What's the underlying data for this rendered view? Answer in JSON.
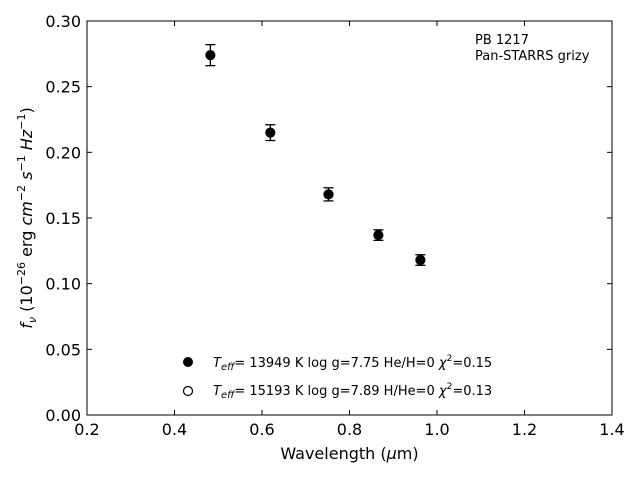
{
  "chart_data": {
    "type": "scatter",
    "title": "",
    "xlabel": "Wavelength (μm)",
    "ylabel": "f_ν (10^-26 erg cm^-2 s^-1 Hz^-1)",
    "xlim": [
      0.2,
      1.4
    ],
    "ylim": [
      0.0,
      0.3
    ],
    "xticks": [
      "0.2",
      "0.4",
      "0.6",
      "0.8",
      "1.0",
      "1.2",
      "1.4"
    ],
    "yticks": [
      "0.00",
      "0.05",
      "0.10",
      "0.15",
      "0.20",
      "0.25",
      "0.30"
    ],
    "grid": false,
    "annotation": {
      "line1": "PB 1217",
      "line2": "Pan-STARRS grizy"
    },
    "series": [
      {
        "name": "T_eff= 13949 K  log g=7.75  He/H=0  χ²=0.15",
        "marker": "filled-circle",
        "color": "#000000",
        "points": [
          {
            "x": 0.482,
            "y": 0.274,
            "err": 0.008
          },
          {
            "x": 0.619,
            "y": 0.215,
            "err": 0.006
          },
          {
            "x": 0.752,
            "y": 0.168,
            "err": 0.005
          },
          {
            "x": 0.866,
            "y": 0.137,
            "err": 0.004
          },
          {
            "x": 0.962,
            "y": 0.118,
            "err": 0.004
          }
        ]
      },
      {
        "name": "T_eff= 15193 K  log g=7.89  H/He=0  χ²=0.13",
        "marker": "open-circle",
        "color": "#000000",
        "points": []
      }
    ],
    "legend_position": "lower-center"
  }
}
